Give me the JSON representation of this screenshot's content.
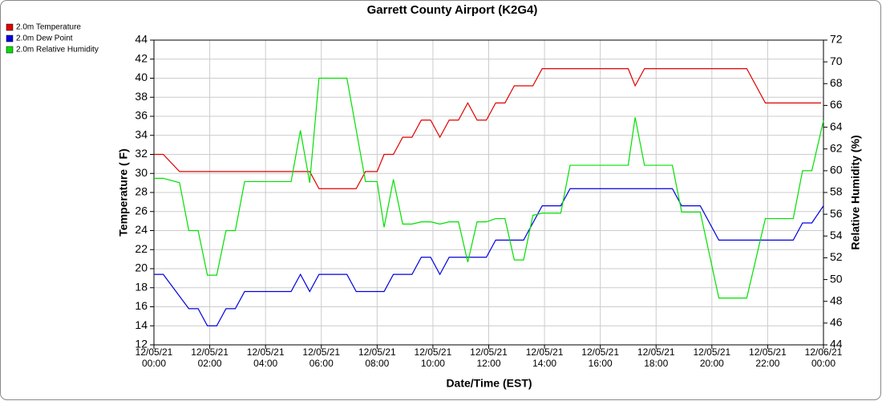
{
  "chart_data": {
    "type": "line",
    "title": "Garrett County Airport (K2G4)",
    "x_label": "Date/Time (EST)",
    "y_label": "Temperature ( F)",
    "y2_label": "Relative Humidity (%)",
    "xlim": [
      "12/05/21 00:00",
      "12/06/21 00:00"
    ],
    "xticks": [
      "12/05/21 00:00",
      "12/05/21 02:00",
      "12/05/21 04:00",
      "12/05/21 06:00",
      "12/05/21 08:00",
      "12/05/21 10:00",
      "12/05/21 12:00",
      "12/05/21 14:00",
      "12/05/21 16:00",
      "12/05/21 18:00",
      "12/05/21 20:00",
      "12/05/21 22:00",
      "12/06/21 00:00"
    ],
    "ylim": [
      12,
      44
    ],
    "yticks": [
      12,
      14,
      16,
      18,
      20,
      22,
      24,
      26,
      28,
      30,
      32,
      34,
      36,
      38,
      40,
      42,
      44
    ],
    "y2lim": [
      44,
      72
    ],
    "y2ticks": [
      44,
      46,
      48,
      50,
      52,
      54,
      56,
      58,
      60,
      62,
      64,
      66,
      68,
      70,
      72
    ],
    "grid": true,
    "legend": "top-left",
    "series": [
      {
        "name": "2.0m Temperature",
        "color": "#e00000",
        "x": [
          "12/05/21 00:00",
          "12/05/21 00:20",
          "12/05/21 00:55",
          "12/05/21 05:35",
          "12/05/21 05:55",
          "12/05/21 07:15",
          "12/05/21 07:35",
          "12/05/21 08:00",
          "12/05/21 08:15",
          "12/05/21 08:35",
          "12/05/21 08:55",
          "12/05/21 09:15",
          "12/05/21 09:35",
          "12/05/21 09:55",
          "12/05/21 10:15",
          "12/05/21 10:35",
          "12/05/21 10:55",
          "12/05/21 11:15",
          "12/05/21 11:35",
          "12/05/21 11:55",
          "12/05/21 12:15",
          "12/05/21 12:35",
          "12/05/21 12:55",
          "12/05/21 13:35",
          "12/05/21 13:55",
          "12/05/21 17:00",
          "12/05/21 17:15",
          "12/05/21 17:35",
          "12/05/21 21:15",
          "12/05/21 21:55",
          "12/05/21 23:55"
        ],
        "values": [
          32,
          32,
          30.2,
          30.2,
          28.4,
          28.4,
          30.2,
          30.2,
          32,
          32,
          33.8,
          33.8,
          35.6,
          35.6,
          33.8,
          35.6,
          35.6,
          37.4,
          35.6,
          35.6,
          37.4,
          37.4,
          39.2,
          39.2,
          41,
          41,
          39.2,
          41,
          41,
          37.4,
          37.4
        ]
      },
      {
        "name": "2.0m Dew Point",
        "color": "#0000e0",
        "x": [
          "12/05/21 00:00",
          "12/05/21 00:20",
          "12/05/21 01:15",
          "12/05/21 01:35",
          "12/05/21 01:55",
          "12/05/21 02:15",
          "12/05/21 02:35",
          "12/05/21 02:55",
          "12/05/21 03:15",
          "12/05/21 04:55",
          "12/05/21 05:15",
          "12/05/21 05:35",
          "12/05/21 05:55",
          "12/05/21 06:55",
          "12/05/21 07:15",
          "12/05/21 08:15",
          "12/05/21 08:35",
          "12/05/21 09:15",
          "12/05/21 09:35",
          "12/05/21 09:55",
          "12/05/21 10:15",
          "12/05/21 10:35",
          "12/05/21 11:55",
          "12/05/21 12:15",
          "12/05/21 13:15",
          "12/05/21 13:55",
          "12/05/21 14:35",
          "12/05/21 14:55",
          "12/05/21 18:35",
          "12/05/21 18:55",
          "12/05/21 19:35",
          "12/05/21 20:15",
          "12/05/21 22:55",
          "12/05/21 23:15",
          "12/05/21 23:35",
          "12/06/21 00:00"
        ],
        "values": [
          19.4,
          19.4,
          15.8,
          15.8,
          14,
          14,
          15.8,
          15.8,
          17.6,
          17.6,
          19.4,
          17.6,
          19.4,
          19.4,
          17.6,
          17.6,
          19.4,
          19.4,
          21.2,
          21.2,
          19.4,
          21.2,
          21.2,
          23,
          23,
          26.6,
          26.6,
          28.4,
          28.4,
          26.6,
          26.6,
          23,
          23,
          24.8,
          24.8,
          26.6
        ]
      },
      {
        "name": "2.0m Relative Humidity",
        "color": "#00e000",
        "axis": "y2",
        "x": [
          "12/05/21 00:00",
          "12/05/21 00:20",
          "12/05/21 00:55",
          "12/05/21 01:15",
          "12/05/21 01:35",
          "12/05/21 01:55",
          "12/05/21 02:15",
          "12/05/21 02:35",
          "12/05/21 02:55",
          "12/05/21 03:15",
          "12/05/21 04:55",
          "12/05/21 05:15",
          "12/05/21 05:35",
          "12/05/21 05:55",
          "12/05/21 06:55",
          "12/05/21 07:35",
          "12/05/21 08:00",
          "12/05/21 08:15",
          "12/05/21 08:35",
          "12/05/21 08:55",
          "12/05/21 09:15",
          "12/05/21 09:35",
          "12/05/21 09:55",
          "12/05/21 10:15",
          "12/05/21 10:35",
          "12/05/21 10:55",
          "12/05/21 11:15",
          "12/05/21 11:35",
          "12/05/21 11:55",
          "12/05/21 12:15",
          "12/05/21 12:35",
          "12/05/21 12:55",
          "12/05/21 13:15",
          "12/05/21 13:35",
          "12/05/21 13:55",
          "12/05/21 14:35",
          "12/05/21 14:55",
          "12/05/21 17:00",
          "12/05/21 17:15",
          "12/05/21 17:35",
          "12/05/21 18:35",
          "12/05/21 18:55",
          "12/05/21 19:35",
          "12/05/21 20:15",
          "12/05/21 21:15",
          "12/05/21 21:55",
          "12/05/21 22:55",
          "12/05/21 23:15",
          "12/05/21 23:35",
          "12/06/21 00:00"
        ],
        "values": [
          59.3,
          59.3,
          58.9,
          54.5,
          54.5,
          50.4,
          50.4,
          54.5,
          54.5,
          59,
          59,
          63.7,
          58.9,
          68.5,
          68.5,
          59,
          59,
          54.8,
          59.2,
          55.1,
          55.1,
          55.3,
          55.3,
          55.1,
          55.3,
          55.3,
          51.6,
          55.3,
          55.3,
          55.6,
          55.6,
          51.8,
          51.8,
          55.9,
          56.1,
          56.1,
          60.5,
          60.5,
          64.9,
          60.5,
          60.5,
          56.2,
          56.2,
          48.3,
          48.3,
          55.6,
          55.6,
          60,
          60,
          64.6
        ]
      }
    ]
  }
}
